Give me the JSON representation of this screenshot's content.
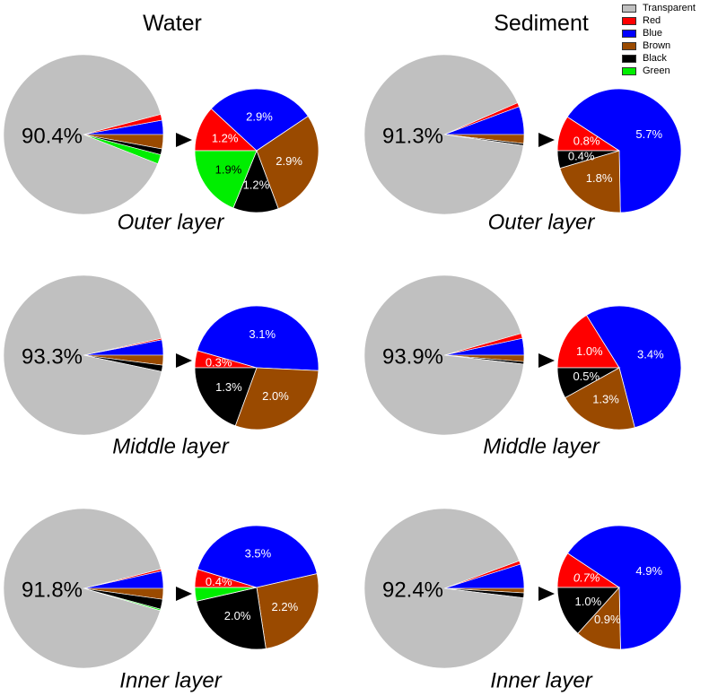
{
  "columns": {
    "water": "Water",
    "sediment": "Sediment"
  },
  "colors": {
    "Transparent": "#c0c0c0",
    "Red": "#ff0000",
    "Blue": "#0000ff",
    "Brown": "#9a4a00",
    "Black": "#000000",
    "Green": "#00ee00"
  },
  "legend": [
    "Transparent",
    "Red",
    "Blue",
    "Brown",
    "Black",
    "Green"
  ],
  "chart_data": [
    {
      "type": "pie",
      "column": "Water",
      "layer": "Outer layer",
      "transparent": {
        "value": 90.4,
        "label": "90.4%"
      },
      "colored": [
        {
          "name": "Blue",
          "value": 2.9,
          "label": "2.9%"
        },
        {
          "name": "Brown",
          "value": 2.9,
          "label": "2.9%"
        },
        {
          "name": "Black",
          "value": 1.2,
          "label": "1.2%"
        },
        {
          "name": "Green",
          "value": 1.9,
          "label": "1.9%"
        },
        {
          "name": "Red",
          "value": 1.2,
          "label": "1.2%"
        }
      ]
    },
    {
      "type": "pie",
      "column": "Sediment",
      "layer": "Outer layer",
      "transparent": {
        "value": 91.3,
        "label": "91.3%"
      },
      "colored": [
        {
          "name": "Blue",
          "value": 5.7,
          "label": "5.7%"
        },
        {
          "name": "Brown",
          "value": 1.8,
          "label": "1.8%"
        },
        {
          "name": "Black",
          "value": 0.4,
          "label": "0.4%"
        },
        {
          "name": "Red",
          "value": 0.8,
          "label": "0.8%"
        }
      ]
    },
    {
      "type": "pie",
      "column": "Water",
      "layer": "Middle layer",
      "transparent": {
        "value": 93.3,
        "label": "93.3%"
      },
      "colored": [
        {
          "name": "Blue",
          "value": 3.1,
          "label": "3.1%"
        },
        {
          "name": "Brown",
          "value": 2.0,
          "label": "2.0%"
        },
        {
          "name": "Black",
          "value": 1.3,
          "label": "1.3%"
        },
        {
          "name": "Red",
          "value": 0.3,
          "label": "0.3%"
        }
      ]
    },
    {
      "type": "pie",
      "column": "Sediment",
      "layer": "Middle layer",
      "transparent": {
        "value": 93.9,
        "label": "93.9%"
      },
      "colored": [
        {
          "name": "Blue",
          "value": 3.4,
          "label": "3.4%"
        },
        {
          "name": "Brown",
          "value": 1.3,
          "label": "1.3%"
        },
        {
          "name": "Black",
          "value": 0.5,
          "label": "0.5%"
        },
        {
          "name": "Red",
          "value": 1.0,
          "label": "1.0%"
        }
      ]
    },
    {
      "type": "pie",
      "column": "Water",
      "layer": "Inner layer",
      "transparent": {
        "value": 91.8,
        "label": "91.8%"
      },
      "colored": [
        {
          "name": "Blue",
          "value": 3.5,
          "label": "3.5%"
        },
        {
          "name": "Brown",
          "value": 2.2,
          "label": "2.2%"
        },
        {
          "name": "Black",
          "value": 2.0,
          "label": "2.0%"
        },
        {
          "name": "Green",
          "value": 0.3
        },
        {
          "name": "Red",
          "value": 0.4,
          "label": "0.4%"
        }
      ]
    },
    {
      "type": "pie",
      "column": "Sediment",
      "layer": "Inner layer",
      "transparent": {
        "value": 92.4,
        "label": "92.4%"
      },
      "colored": [
        {
          "name": "Blue",
          "value": 4.9,
          "label": "4.9%"
        },
        {
          "name": "Brown",
          "value": 0.9,
          "label": "0.9%"
        },
        {
          "name": "Black",
          "value": 1.0,
          "label": "1.0%"
        },
        {
          "name": "Red",
          "value": 0.7,
          "label": "0.7%"
        }
      ]
    }
  ]
}
